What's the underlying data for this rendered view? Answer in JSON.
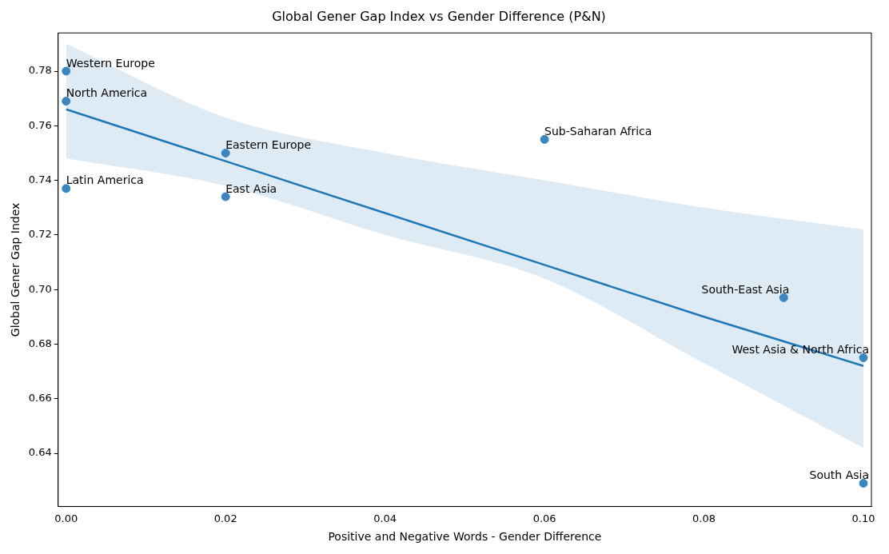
{
  "chart_data": {
    "type": "scatter",
    "title": "Global Gener Gap Index vs Gender Difference (P&N)",
    "xlabel": "Positive and Negative Words - Gender Difference",
    "ylabel": "Global Gener Gap Index",
    "series": [
      {
        "marker": "circle",
        "color": "#3a87c0",
        "x": [
          0,
          0,
          0.02,
          0,
          0.02,
          0.06,
          0.09,
          0.1,
          0.1
        ],
        "values": [
          0.78,
          0.769,
          0.75,
          0.737,
          0.734,
          0.755,
          0.697,
          0.675,
          0.629
        ]
      },
      {
        "type": "line",
        "marker": "none",
        "color": "#1f77b4",
        "x": [
          0,
          0.02,
          0.04,
          0.06,
          0.08,
          0.1
        ],
        "values": [
          0.766,
          0.747,
          0.728,
          0.709,
          0.69,
          0.672
        ],
        "lower": [
          0.748,
          0.738,
          0.72,
          0.704,
          0.673,
          0.642
        ],
        "upper": [
          0.79,
          0.763,
          0.75,
          0.74,
          0.73,
          0.722
        ]
      }
    ],
    "annotations": [
      {
        "text": "Western Europe",
        "x": 0,
        "y": 0.78
      },
      {
        "text": "North America",
        "x": 0,
        "y": 0.769
      },
      {
        "text": "Eastern Europe",
        "x": 0.02,
        "y": 0.75
      },
      {
        "text": "Latin America",
        "x": 0,
        "y": 0.737
      },
      {
        "text": "East Asia",
        "x": 0.02,
        "y": 0.734
      },
      {
        "text": "Sub-Saharan Africa",
        "x": 0.06,
        "y": 0.755
      },
      {
        "text": "South-East Asia",
        "x": 0.09,
        "y": 0.697
      },
      {
        "text": "West Asia & North Africa",
        "x": 0.1,
        "y": 0.675
      },
      {
        "text": "South Asia",
        "x": 0.1,
        "y": 0.629
      }
    ],
    "xlim": [
      -0.001,
      0.101
    ],
    "ylim": [
      0.6205,
      0.794
    ],
    "xticks": [
      {
        "value": 0,
        "label": "0.00"
      },
      {
        "value": 0.02,
        "label": "0.02"
      },
      {
        "value": 0.04,
        "label": "0.04"
      },
      {
        "value": 0.06,
        "label": "0.06"
      },
      {
        "value": 0.08,
        "label": "0.08"
      },
      {
        "value": 0.1,
        "label": "0.10"
      }
    ],
    "yticks": [
      {
        "value": 0.64,
        "label": "0.64"
      },
      {
        "value": 0.66,
        "label": "0.66"
      },
      {
        "value": 0.68,
        "label": "0.68"
      },
      {
        "value": 0.7,
        "label": "0.70"
      },
      {
        "value": 0.72,
        "label": "0.72"
      },
      {
        "value": 0.74,
        "label": "0.74"
      },
      {
        "value": 0.76,
        "label": "0.76"
      },
      {
        "value": 0.78,
        "label": "0.78"
      }
    ],
    "grid": false,
    "legend": false,
    "line_style": "solid"
  }
}
